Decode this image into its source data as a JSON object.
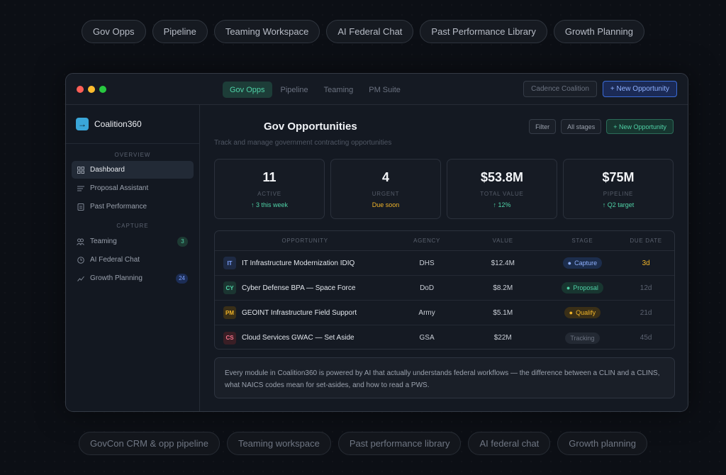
{
  "top_pills": [
    "Gov Opps",
    "Pipeline",
    "Teaming Workspace",
    "AI Federal Chat",
    "Past Performance Library",
    "Growth Planning"
  ],
  "bottom_pills": [
    "GovCon CRM & opp pipeline",
    "Teaming workspace",
    "Past performance library",
    "AI federal chat",
    "Growth planning"
  ],
  "window": {
    "tabs": [
      "Gov Opps",
      "Pipeline",
      "Teaming",
      "PM Suite"
    ],
    "active_tab": "Gov Opps",
    "org_button": "Cadence Coalition",
    "new_button": "+ New Opportunity"
  },
  "sidebar": {
    "brand": "Coalition360",
    "overview_label": "OVERVIEW",
    "capture_label": "CAPTURE",
    "items": [
      {
        "label": "Dashboard",
        "icon": "grid-icon"
      },
      {
        "label": "Proposal Assistant",
        "icon": "lines-icon"
      },
      {
        "label": "Past Performance",
        "icon": "document-icon"
      },
      {
        "label": "Teaming",
        "icon": "users-icon",
        "badge": "3"
      },
      {
        "label": "AI Federal Chat",
        "icon": "clock-icon"
      },
      {
        "label": "Growth Planning",
        "icon": "trend-icon",
        "badge": "24"
      }
    ]
  },
  "main": {
    "title": "Gov Opportunities",
    "subtitle": "Track and manage government contracting opportunities",
    "filter_button": "Filter",
    "stages_button": "All stages",
    "new_button": "+ New Opportunity",
    "stats": [
      {
        "value": "11",
        "label": "ACTIVE",
        "delta": "↑ 3 this week"
      },
      {
        "value": "4",
        "label": "URGENT",
        "delta": "Due soon"
      },
      {
        "value": "$53.8M",
        "label": "TOTAL VALUE",
        "delta": "↑ 12%"
      },
      {
        "value": "$75M",
        "label": "PIPELINE",
        "delta": "↑ Q2 target"
      }
    ],
    "table": {
      "headers": [
        "OPPORTUNITY",
        "AGENCY",
        "VALUE",
        "STAGE",
        "DUE DATE"
      ],
      "rows": [
        {
          "code": "IT",
          "name": "IT Infrastructure Modernization IDIQ",
          "agency": "DHS",
          "value": "$12.4M",
          "stage": "Capture",
          "due": "3d"
        },
        {
          "code": "CY",
          "name": "Cyber Defense BPA — Space Force",
          "agency": "DoD",
          "value": "$8.2M",
          "stage": "Proposal",
          "due": "12d"
        },
        {
          "code": "PM",
          "name": "GEOINT Infrastructure Field Support",
          "agency": "Army",
          "value": "$5.1M",
          "stage": "Qualify",
          "due": "21d"
        },
        {
          "code": "CS",
          "name": "Cloud Services GWAC — Set Aside",
          "agency": "GSA",
          "value": "$22M",
          "stage": "Tracking",
          "due": "45d"
        }
      ]
    },
    "note": "Every module in Coalition360 is powered by AI that actually understands federal workflows — the difference between a CLIN and a CLINS, what NAICS codes mean for set-asides, and how to read a PWS."
  },
  "colors": {
    "accent_green": "#4fd1a6",
    "accent_blue": "#8fb1ff",
    "accent_amber": "#f0b429",
    "background": "#0c0f15"
  }
}
